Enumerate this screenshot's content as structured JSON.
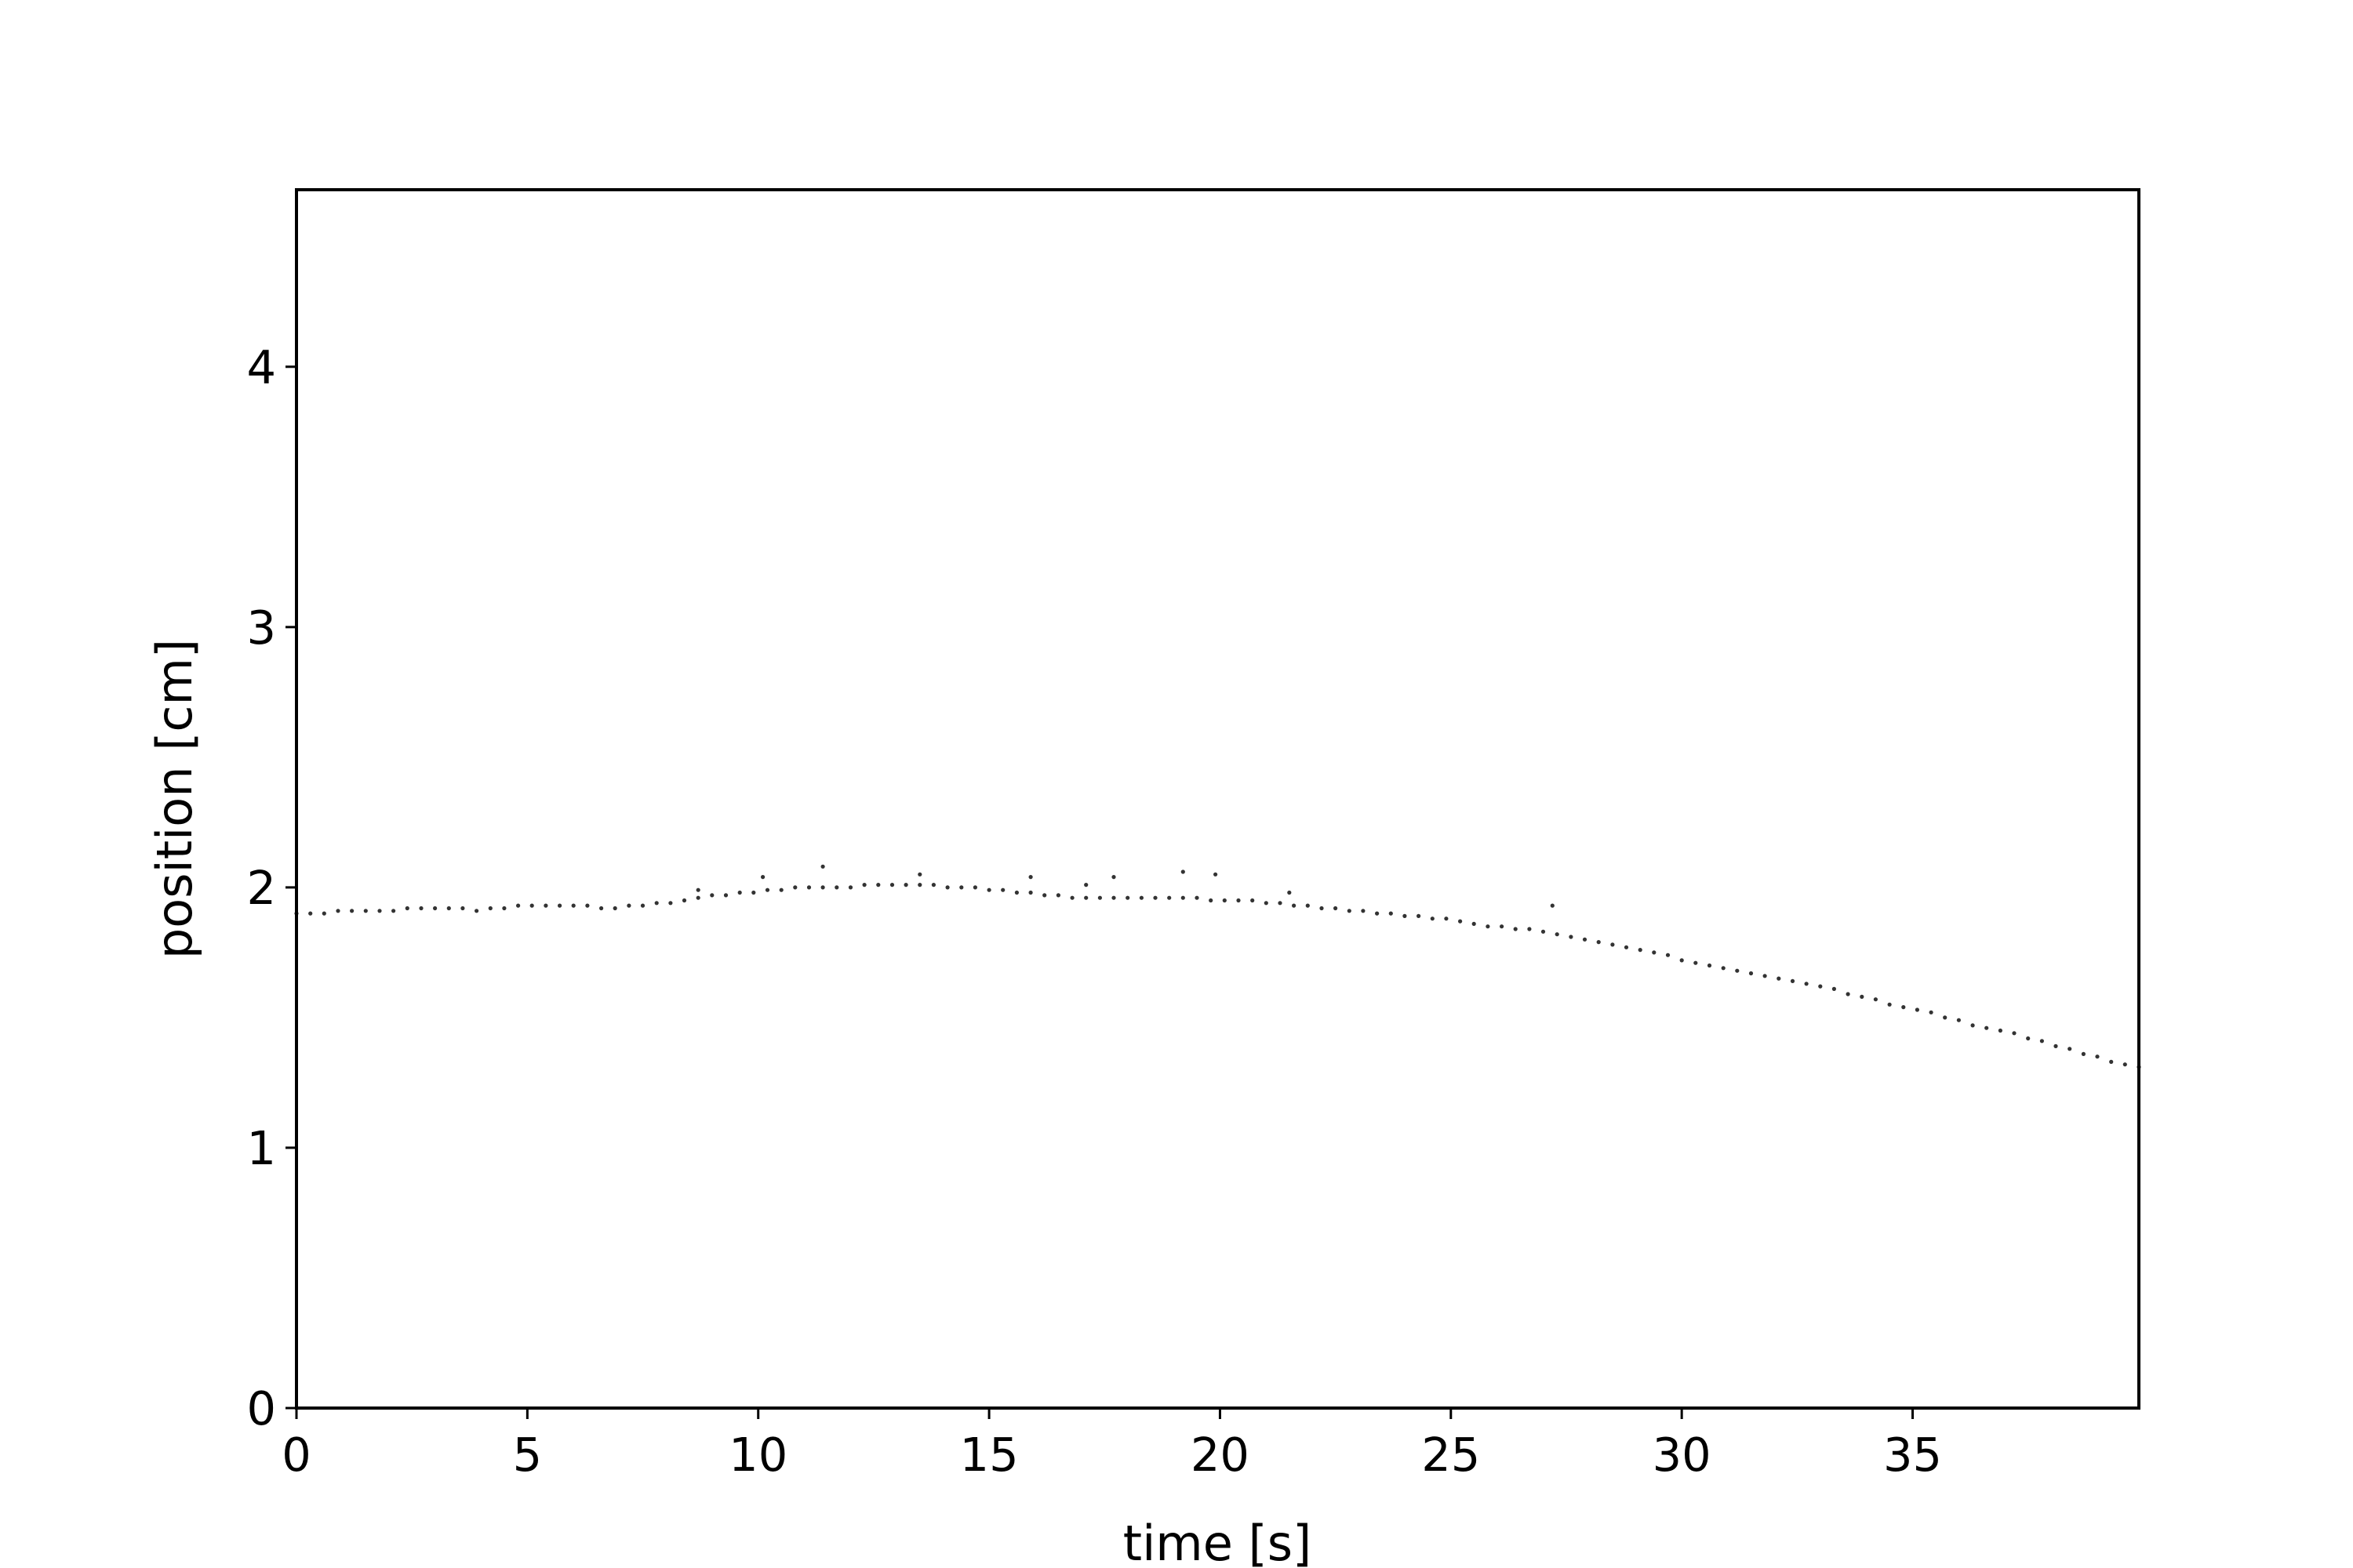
{
  "chart_data": {
    "type": "scatter",
    "title": "",
    "xlabel": "time [s]",
    "ylabel": "position [cm]",
    "xlim": [
      0,
      39.9
    ],
    "ylim": [
      0,
      4.68
    ],
    "xticks": [
      0,
      5,
      10,
      15,
      20,
      25,
      30,
      35
    ],
    "yticks": [
      0,
      1,
      2,
      3,
      4
    ],
    "grid": false,
    "legend": "none",
    "marker_color": "#333333",
    "series": [
      {
        "values": [
          [
            0.0,
            1.9
          ],
          [
            0.3,
            1.9
          ],
          [
            0.6,
            1.9
          ],
          [
            0.9,
            1.91
          ],
          [
            1.2,
            1.91
          ],
          [
            1.5,
            1.91
          ],
          [
            1.8,
            1.91
          ],
          [
            2.1,
            1.91
          ],
          [
            2.4,
            1.92
          ],
          [
            2.7,
            1.92
          ],
          [
            3.0,
            1.92
          ],
          [
            3.3,
            1.92
          ],
          [
            3.6,
            1.92
          ],
          [
            3.9,
            1.91
          ],
          [
            4.2,
            1.92
          ],
          [
            4.5,
            1.92
          ],
          [
            4.8,
            1.93
          ],
          [
            5.1,
            1.93
          ],
          [
            5.4,
            1.93
          ],
          [
            5.7,
            1.93
          ],
          [
            6.0,
            1.93
          ],
          [
            6.3,
            1.93
          ],
          [
            6.6,
            1.92
          ],
          [
            6.9,
            1.92
          ],
          [
            7.2,
            1.93
          ],
          [
            7.5,
            1.93
          ],
          [
            7.8,
            1.94
          ],
          [
            8.1,
            1.94
          ],
          [
            8.4,
            1.95
          ],
          [
            8.7,
            1.96
          ],
          [
            9.0,
            1.97
          ],
          [
            9.3,
            1.97
          ],
          [
            9.6,
            1.98
          ],
          [
            9.9,
            1.98
          ],
          [
            10.2,
            1.99
          ],
          [
            10.5,
            1.99
          ],
          [
            10.8,
            2.0
          ],
          [
            11.1,
            2.0
          ],
          [
            11.4,
            2.0
          ],
          [
            11.7,
            2.0
          ],
          [
            12.0,
            2.0
          ],
          [
            12.3,
            2.01
          ],
          [
            12.6,
            2.01
          ],
          [
            12.9,
            2.01
          ],
          [
            13.2,
            2.01
          ],
          [
            13.5,
            2.01
          ],
          [
            13.8,
            2.01
          ],
          [
            14.1,
            2.0
          ],
          [
            14.4,
            2.0
          ],
          [
            14.7,
            2.0
          ],
          [
            15.0,
            1.99
          ],
          [
            15.3,
            1.99
          ],
          [
            15.6,
            1.98
          ],
          [
            15.9,
            1.98
          ],
          [
            16.2,
            1.97
          ],
          [
            16.5,
            1.97
          ],
          [
            16.8,
            1.96
          ],
          [
            17.1,
            1.96
          ],
          [
            17.4,
            1.96
          ],
          [
            17.7,
            1.96
          ],
          [
            18.0,
            1.96
          ],
          [
            18.3,
            1.96
          ],
          [
            18.6,
            1.96
          ],
          [
            18.9,
            1.96
          ],
          [
            19.2,
            1.96
          ],
          [
            19.5,
            1.96
          ],
          [
            19.8,
            1.95
          ],
          [
            20.1,
            1.95
          ],
          [
            20.4,
            1.95
          ],
          [
            20.7,
            1.95
          ],
          [
            21.0,
            1.94
          ],
          [
            21.3,
            1.94
          ],
          [
            21.6,
            1.93
          ],
          [
            21.9,
            1.93
          ],
          [
            22.2,
            1.92
          ],
          [
            22.5,
            1.92
          ],
          [
            22.8,
            1.91
          ],
          [
            23.1,
            1.91
          ],
          [
            23.4,
            1.9
          ],
          [
            23.7,
            1.9
          ],
          [
            24.0,
            1.89
          ],
          [
            24.3,
            1.89
          ],
          [
            24.6,
            1.88
          ],
          [
            24.9,
            1.88
          ],
          [
            25.2,
            1.87
          ],
          [
            25.5,
            1.86
          ],
          [
            25.8,
            1.85
          ],
          [
            26.1,
            1.85
          ],
          [
            26.4,
            1.84
          ],
          [
            26.7,
            1.84
          ],
          [
            27.0,
            1.83
          ],
          [
            27.3,
            1.82
          ],
          [
            27.6,
            1.81
          ],
          [
            27.9,
            1.8
          ],
          [
            28.2,
            1.79
          ],
          [
            28.5,
            1.78
          ],
          [
            28.8,
            1.77
          ],
          [
            29.1,
            1.76
          ],
          [
            29.4,
            1.75
          ],
          [
            29.7,
            1.74
          ],
          [
            30.0,
            1.72
          ],
          [
            30.3,
            1.71
          ],
          [
            30.6,
            1.7
          ],
          [
            30.9,
            1.69
          ],
          [
            31.2,
            1.68
          ],
          [
            31.5,
            1.67
          ],
          [
            31.8,
            1.66
          ],
          [
            32.1,
            1.65
          ],
          [
            32.4,
            1.64
          ],
          [
            32.7,
            1.63
          ],
          [
            33.0,
            1.62
          ],
          [
            33.3,
            1.61
          ],
          [
            33.6,
            1.59
          ],
          [
            33.9,
            1.58
          ],
          [
            34.2,
            1.57
          ],
          [
            34.5,
            1.55
          ],
          [
            34.8,
            1.54
          ],
          [
            35.1,
            1.53
          ],
          [
            35.4,
            1.52
          ],
          [
            35.7,
            1.5
          ],
          [
            36.0,
            1.49
          ],
          [
            36.3,
            1.47
          ],
          [
            36.6,
            1.46
          ],
          [
            36.9,
            1.45
          ],
          [
            37.2,
            1.44
          ],
          [
            37.5,
            1.42
          ],
          [
            37.8,
            1.41
          ],
          [
            38.1,
            1.39
          ],
          [
            38.4,
            1.38
          ],
          [
            38.7,
            1.36
          ],
          [
            39.0,
            1.35
          ],
          [
            39.3,
            1.33
          ],
          [
            39.6,
            1.32
          ],
          [
            39.9,
            1.31
          ],
          [
            11.4,
            2.08
          ],
          [
            13.5,
            2.05
          ],
          [
            15.9,
            2.04
          ],
          [
            17.1,
            2.01
          ],
          [
            17.7,
            2.04
          ],
          [
            19.2,
            2.06
          ],
          [
            19.9,
            2.05
          ],
          [
            21.5,
            1.98
          ],
          [
            27.2,
            1.93
          ],
          [
            10.1,
            2.04
          ],
          [
            8.7,
            1.99
          ]
        ]
      }
    ]
  }
}
